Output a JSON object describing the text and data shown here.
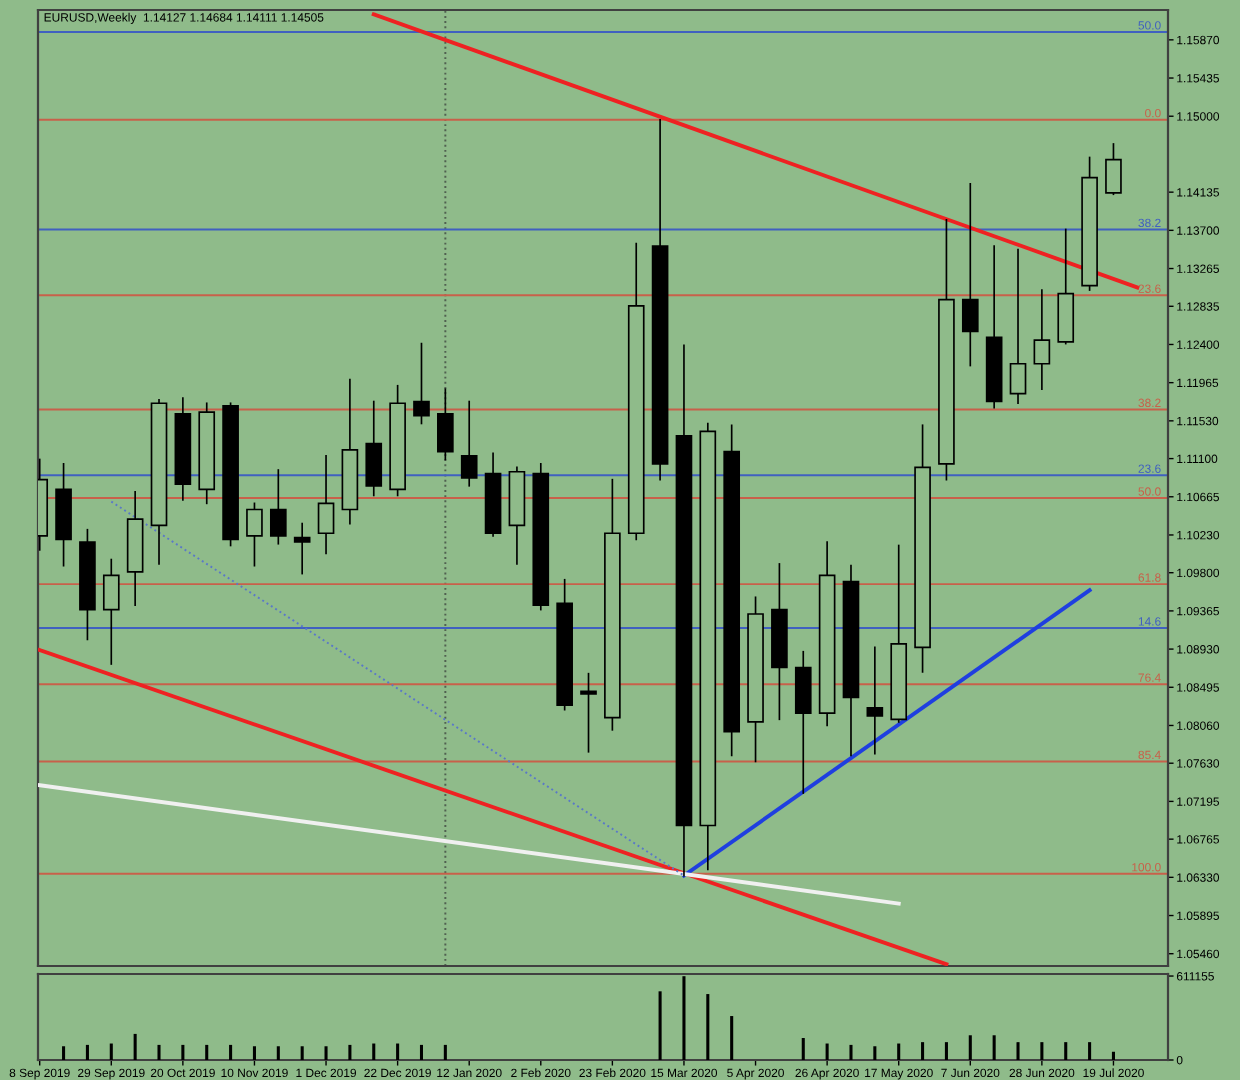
{
  "chart_data": [
    {
      "type": "candlestick",
      "title": "EURUSD,Weekly  1.14127 1.14684 1.14111 1.14505",
      "x": [
        "2019-09-08",
        "2019-09-15",
        "2019-09-22",
        "2019-09-29",
        "2019-10-06",
        "2019-10-13",
        "2019-10-20",
        "2019-10-27",
        "2019-11-03",
        "2019-11-10",
        "2019-11-17",
        "2019-11-24",
        "2019-12-01",
        "2019-12-08",
        "2019-12-15",
        "2019-12-22",
        "2019-12-29",
        "2020-01-05",
        "2020-01-12",
        "2020-01-19",
        "2020-01-26",
        "2020-02-02",
        "2020-02-09",
        "2020-02-16",
        "2020-02-23",
        "2020-03-01",
        "2020-03-08",
        "2020-03-15",
        "2020-03-22",
        "2020-03-29",
        "2020-04-05",
        "2020-04-12",
        "2020-04-19",
        "2020-04-26",
        "2020-05-03",
        "2020-05-10",
        "2020-05-17",
        "2020-05-24",
        "2020-05-31",
        "2020-06-07",
        "2020-06-14",
        "2020-06-21",
        "2020-06-28",
        "2020-07-05",
        "2020-07-12",
        "2020-07-19"
      ],
      "ohlc": [
        [
          1.1022,
          1.1109,
          1.1006,
          1.1086
        ],
        [
          1.1075,
          1.1104,
          1.0988,
          1.1018
        ],
        [
          1.1015,
          1.1029,
          1.0904,
          1.0938
        ],
        [
          1.0938,
          1.0995,
          1.0876,
          1.0977
        ],
        [
          1.0981,
          1.1072,
          1.0943,
          1.1041
        ],
        [
          1.1034,
          1.1177,
          1.099,
          1.1173
        ],
        [
          1.1161,
          1.1179,
          1.1063,
          1.1081
        ],
        [
          1.1075,
          1.1173,
          1.1059,
          1.1163
        ],
        [
          1.117,
          1.1173,
          1.1011,
          1.1018
        ],
        [
          1.1022,
          1.1059,
          1.0988,
          1.1052
        ],
        [
          1.1052,
          1.1097,
          1.1013,
          1.1022
        ],
        [
          1.102,
          1.1036,
          1.0979,
          1.1015
        ],
        [
          1.1025,
          1.1113,
          1.1002,
          1.1059
        ],
        [
          1.1052,
          1.12,
          1.1036,
          1.112
        ],
        [
          1.1127,
          1.1175,
          1.1068,
          1.1079
        ],
        [
          1.1075,
          1.1193,
          1.1068,
          1.1173
        ],
        [
          1.1175,
          1.1241,
          1.115,
          1.1159
        ],
        [
          1.1161,
          1.1189,
          1.1109,
          1.1118
        ],
        [
          1.1113,
          1.1175,
          1.1079,
          1.1088
        ],
        [
          1.1093,
          1.1116,
          1.1022,
          1.1025
        ],
        [
          1.1034,
          1.11,
          1.099,
          1.1095
        ],
        [
          1.1093,
          1.1104,
          1.0938,
          1.0943
        ],
        [
          1.0945,
          1.0972,
          1.0824,
          1.0829
        ],
        [
          1.0845,
          1.0865,
          1.0776,
          1.0842
        ],
        [
          1.0815,
          1.1086,
          1.0801,
          1.1025
        ],
        [
          1.1025,
          1.1355,
          1.1018,
          1.1284
        ],
        [
          1.1352,
          1.1496,
          1.1086,
          1.1104
        ],
        [
          1.1136,
          1.1239,
          1.0635,
          1.0692
        ],
        [
          1.0692,
          1.115,
          1.0642,
          1.1141
        ],
        [
          1.1118,
          1.1148,
          1.0772,
          1.0799
        ],
        [
          1.081,
          1.0952,
          1.0765,
          1.0933
        ],
        [
          1.0938,
          1.099,
          1.0813,
          1.0872
        ],
        [
          1.0872,
          1.089,
          1.0729,
          1.082
        ],
        [
          1.082,
          1.1015,
          1.0806,
          1.0977
        ],
        [
          1.097,
          1.0988,
          1.0772,
          1.0838
        ],
        [
          1.0826,
          1.0895,
          1.0774,
          1.0817
        ],
        [
          1.0813,
          1.1011,
          1.081,
          1.0899
        ],
        [
          1.0895,
          1.1148,
          1.0867,
          1.11
        ],
        [
          1.1104,
          1.1382,
          1.1086,
          1.1291
        ],
        [
          1.1291,
          1.1423,
          1.1216,
          1.1255
        ],
        [
          1.1248,
          1.1352,
          1.1168,
          1.1175
        ],
        [
          1.1184,
          1.1348,
          1.1173,
          1.1218
        ],
        [
          1.1218,
          1.1302,
          1.1189,
          1.1245
        ],
        [
          1.1243,
          1.1371,
          1.1241,
          1.1298
        ],
        [
          1.1307,
          1.1453,
          1.1302,
          1.143
        ],
        [
          1.14127,
          1.14684,
          1.14111,
          1.14505
        ]
      ],
      "series": [
        {
          "type": "line",
          "color": "#ee2222",
          "x": [
            "2019-12-15",
            "2020-07-26"
          ],
          "values": [
            1.1616,
            1.1305
          ]
        },
        {
          "type": "line",
          "color": "#ee2222",
          "x": [
            "2019-09-08",
            "2020-05-31"
          ],
          "values": [
            1.0892,
            1.0534
          ]
        },
        {
          "type": "line",
          "color": "#1f3fe0",
          "x": [
            "2020-03-15",
            "2020-07-12"
          ],
          "values": [
            1.0635,
            1.096
          ]
        },
        {
          "type": "line",
          "color": "#f0f0f0",
          "x": [
            "2019-09-08",
            "2020-05-17"
          ],
          "values": [
            1.0738,
            1.0603
          ]
        },
        {
          "type": "line",
          "color": "#5a78c8",
          "line_style": "dotted",
          "x": [
            "2019-09-29",
            "2020-03-15"
          ],
          "values": [
            1.1061,
            1.0635
          ]
        }
      ],
      "ref_lines": [
        {
          "axis": "x",
          "value": "2020-01-05",
          "color": "#506050",
          "line_style": "dotted"
        },
        {
          "axis": "y",
          "value": 1.1596,
          "color": "#4060c0"
        },
        {
          "axis": "y",
          "value": 1.1496,
          "color": "#c8604a"
        },
        {
          "axis": "y",
          "value": 1.1371,
          "color": "#4060c0"
        },
        {
          "axis": "y",
          "value": 1.1296,
          "color": "#c8604a"
        },
        {
          "axis": "y",
          "value": 1.1166,
          "color": "#c8604a"
        },
        {
          "axis": "y",
          "value": 1.1091,
          "color": "#4060c0"
        },
        {
          "axis": "y",
          "value": 1.1065,
          "color": "#c8604a"
        },
        {
          "axis": "y",
          "value": 1.0967,
          "color": "#c8604a"
        },
        {
          "axis": "y",
          "value": 1.0917,
          "color": "#4060c0"
        },
        {
          "axis": "y",
          "value": 1.0853,
          "color": "#c8604a"
        },
        {
          "axis": "y",
          "value": 1.0765,
          "color": "#c8604a"
        },
        {
          "axis": "y",
          "value": 1.0637,
          "color": "#c8604a"
        }
      ],
      "annotations": [
        {
          "text": "50.0",
          "x": "2020-08-02",
          "y": 1.1596
        },
        {
          "text": "0.0",
          "x": "2020-08-02",
          "y": 1.1496
        },
        {
          "text": "38.2",
          "x": "2020-08-02",
          "y": 1.1371
        },
        {
          "text": "23.6",
          "x": "2020-08-02",
          "y": 1.1296
        },
        {
          "text": "38.2",
          "x": "2020-08-02",
          "y": 1.1166
        },
        {
          "text": "23.6",
          "x": "2020-08-02",
          "y": 1.1091
        },
        {
          "text": "50.0",
          "x": "2020-08-02",
          "y": 1.1065
        },
        {
          "text": "61.8",
          "x": "2020-08-02",
          "y": 1.0967
        },
        {
          "text": "14.6",
          "x": "2020-08-02",
          "y": 1.0917
        },
        {
          "text": "76.4",
          "x": "2020-08-02",
          "y": 1.0853
        },
        {
          "text": "85.4",
          "x": "2020-08-02",
          "y": 1.0765
        },
        {
          "text": "100.0",
          "x": "2020-08-02",
          "y": 1.0637
        }
      ],
      "xlim": [
        "2019-09-07T12:00",
        "2020-08-04"
      ],
      "ylim": [
        1.0532,
        1.1621
      ],
      "yticks": [
        {
          "value": 1.1587,
          "label": "1.15870"
        },
        {
          "value": 1.15435,
          "label": "1.15435"
        },
        {
          "value": 1.15,
          "label": "1.15000"
        },
        {
          "value": 1.14135,
          "label": "1.14135"
        },
        {
          "value": 1.137,
          "label": "1.13700"
        },
        {
          "value": 1.13265,
          "label": "1.13265"
        },
        {
          "value": 1.12835,
          "label": "1.12835"
        },
        {
          "value": 1.124,
          "label": "1.12400"
        },
        {
          "value": 1.11965,
          "label": "1.11965"
        },
        {
          "value": 1.1153,
          "label": "1.11530"
        },
        {
          "value": 1.111,
          "label": "1.11100"
        },
        {
          "value": 1.10665,
          "label": "1.10665"
        },
        {
          "value": 1.1023,
          "label": "1.10230"
        },
        {
          "value": 1.098,
          "label": "1.09800"
        },
        {
          "value": 1.09365,
          "label": "1.09365"
        },
        {
          "value": 1.0893,
          "label": "1.08930"
        },
        {
          "value": 1.08495,
          "label": "1.08495"
        },
        {
          "value": 1.0806,
          "label": "1.08060"
        },
        {
          "value": 1.0763,
          "label": "1.07630"
        },
        {
          "value": 1.07195,
          "label": "1.07195"
        },
        {
          "value": 1.06765,
          "label": "1.06765"
        },
        {
          "value": 1.0633,
          "label": "1.06330"
        },
        {
          "value": 1.05895,
          "label": "1.05895"
        },
        {
          "value": 1.0546,
          "label": "1.05460"
        }
      ],
      "tick_labels": "y",
      "grid": false
    },
    {
      "type": "bar",
      "color": "#000000",
      "x": [
        "2019-09-15",
        "2019-09-22",
        "2019-09-29",
        "2019-10-06",
        "2019-10-13",
        "2019-10-20",
        "2019-10-27",
        "2019-11-03",
        "2019-11-10",
        "2019-11-17",
        "2019-11-24",
        "2019-12-01",
        "2019-12-08",
        "2019-12-15",
        "2019-12-22",
        "2019-12-29",
        "2020-01-05",
        "2020-01-12",
        "2020-01-19",
        "2020-01-26",
        "2020-02-02",
        "2020-02-09",
        "2020-02-16",
        "2020-02-23",
        "2020-03-01",
        "2020-03-08",
        "2020-03-15",
        "2020-03-22",
        "2020-03-29",
        "2020-04-05",
        "2020-04-12",
        "2020-04-19",
        "2020-04-26",
        "2020-05-03",
        "2020-05-10",
        "2020-05-17",
        "2020-05-24",
        "2020-05-31",
        "2020-06-07",
        "2020-06-14",
        "2020-06-21",
        "2020-06-28",
        "2020-07-05",
        "2020-07-12",
        "2020-07-19"
      ],
      "values": [
        100000,
        110000,
        120000,
        190000,
        110000,
        110000,
        110000,
        110000,
        100000,
        100000,
        100000,
        100000,
        110000,
        120000,
        120000,
        110000,
        110000,
        null,
        null,
        null,
        null,
        null,
        null,
        null,
        null,
        500000,
        610000,
        480000,
        320000,
        null,
        null,
        160000,
        120000,
        110000,
        100000,
        120000,
        130000,
        130000,
        180000,
        180000,
        130000,
        130000,
        130000,
        130000,
        60000
      ],
      "xlim": [
        "2019-09-07T12:00",
        "2020-08-04"
      ],
      "xticks": [
        {
          "value": "2019-09-08",
          "label": "8 Sep 2019"
        },
        {
          "value": "2019-09-29",
          "label": "29 Sep 2019"
        },
        {
          "value": "2019-10-20",
          "label": "20 Oct 2019"
        },
        {
          "value": "2019-11-10",
          "label": "10 Nov 2019"
        },
        {
          "value": "2019-12-01",
          "label": "1 Dec 2019"
        },
        {
          "value": "2019-12-22",
          "label": "22 Dec 2019"
        },
        {
          "value": "2020-01-12",
          "label": "12 Jan 2020"
        },
        {
          "value": "2020-02-02",
          "label": "2 Feb 2020"
        },
        {
          "value": "2020-02-23",
          "label": "23 Feb 2020"
        },
        {
          "value": "2020-03-15",
          "label": "15 Mar 2020"
        },
        {
          "value": "2020-04-05",
          "label": "5 Apr 2020"
        },
        {
          "value": "2020-04-26",
          "label": "26 Apr 2020"
        },
        {
          "value": "2020-05-17",
          "label": "17 May 2020"
        },
        {
          "value": "2020-06-07",
          "label": "7 Jun 2020"
        },
        {
          "value": "2020-06-28",
          "label": "28 Jun 2020"
        },
        {
          "value": "2020-07-19",
          "label": "19 Jul 2020"
        }
      ],
      "ylim": [
        0,
        626000
      ],
      "yticks": [
        0,
        611155
      ],
      "grid": false
    }
  ]
}
